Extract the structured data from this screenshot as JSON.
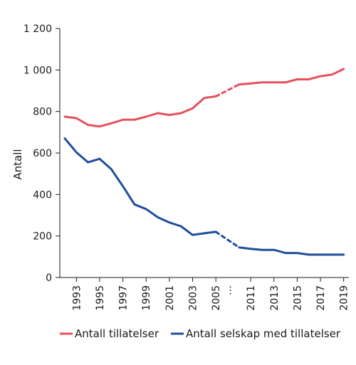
{
  "chart_data": {
    "type": "line",
    "ylabel": "Antall",
    "ylim": [
      0,
      1200
    ],
    "yticks": [
      0,
      200,
      400,
      600,
      800,
      1000,
      1200
    ],
    "ytick_labels": [
      "0",
      "200",
      "400",
      "600",
      "800",
      "1 000",
      "1 200"
    ],
    "x": [
      1992,
      1993,
      1994,
      1995,
      1996,
      1997,
      1998,
      1999,
      2000,
      2001,
      2002,
      2003,
      2004,
      2005,
      2010,
      2011,
      2012,
      2013,
      2014,
      2015,
      2016,
      2017,
      2018,
      2019
    ],
    "xtick_labels": [
      "1993",
      "1995",
      "1997",
      "1999",
      "2001",
      "2003",
      "2005",
      "…",
      "2011",
      "2013",
      "2015",
      "2017",
      "2019"
    ],
    "axis_break": {
      "after": 2005,
      "before": 2010,
      "label": "…",
      "line_style": "dashed"
    },
    "series": [
      {
        "name": "Antall tillatelser",
        "color": "#e8505b",
        "values": [
          775,
          768,
          735,
          728,
          743,
          760,
          760,
          775,
          792,
          783,
          792,
          815,
          865,
          873,
          930,
          935,
          940,
          940,
          940,
          955,
          955,
          970,
          978,
          1005
        ]
      },
      {
        "name": "Antall selskap med tillatelser",
        "color": "#1f4e9c",
        "values": [
          670,
          603,
          555,
          572,
          522,
          440,
          352,
          330,
          290,
          265,
          247,
          205,
          213,
          220,
          145,
          138,
          133,
          133,
          118,
          118,
          110,
          110,
          110,
          110
        ]
      }
    ],
    "legend": "bottom",
    "grid": false
  }
}
